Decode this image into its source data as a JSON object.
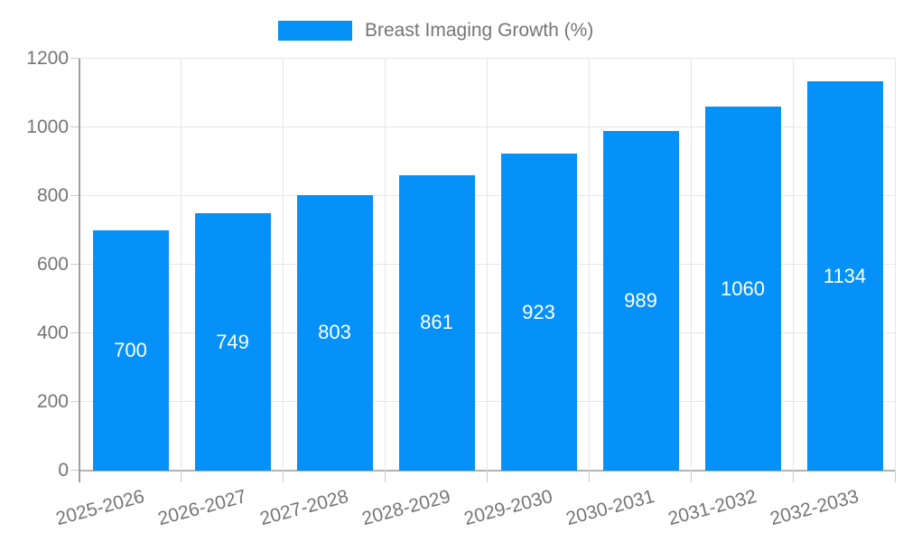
{
  "legend": {
    "label": "Breast Imaging Growth (%)"
  },
  "colors": {
    "bar": "#0591f8",
    "bar_label": "#ffffff",
    "axis_text": "#757575",
    "legend_text": "#757575",
    "gridline": "#e6e6e6",
    "baseline": "#b3b3b3",
    "axis_line": "#9e9e9e",
    "tick": "#cccccc"
  },
  "chart_data": {
    "type": "bar",
    "title": "",
    "legend_entries": [
      "Breast Imaging Growth (%)"
    ],
    "legend_position": "top",
    "categories": [
      "2025-2026",
      "2026-2027",
      "2027-2028",
      "2028-2029",
      "2029-2030",
      "2030-2031",
      "2031-2032",
      "2032-2033"
    ],
    "values": [
      700,
      749,
      803,
      861,
      923,
      989,
      1060,
      1134
    ],
    "xlabel": "",
    "ylabel": "",
    "ylim": [
      0,
      1200
    ],
    "yticks": [
      0,
      200,
      400,
      600,
      800,
      1000,
      1200
    ],
    "grid": true,
    "bar_value_labels_visible": true,
    "x_tick_label_rotation_deg": -15
  }
}
